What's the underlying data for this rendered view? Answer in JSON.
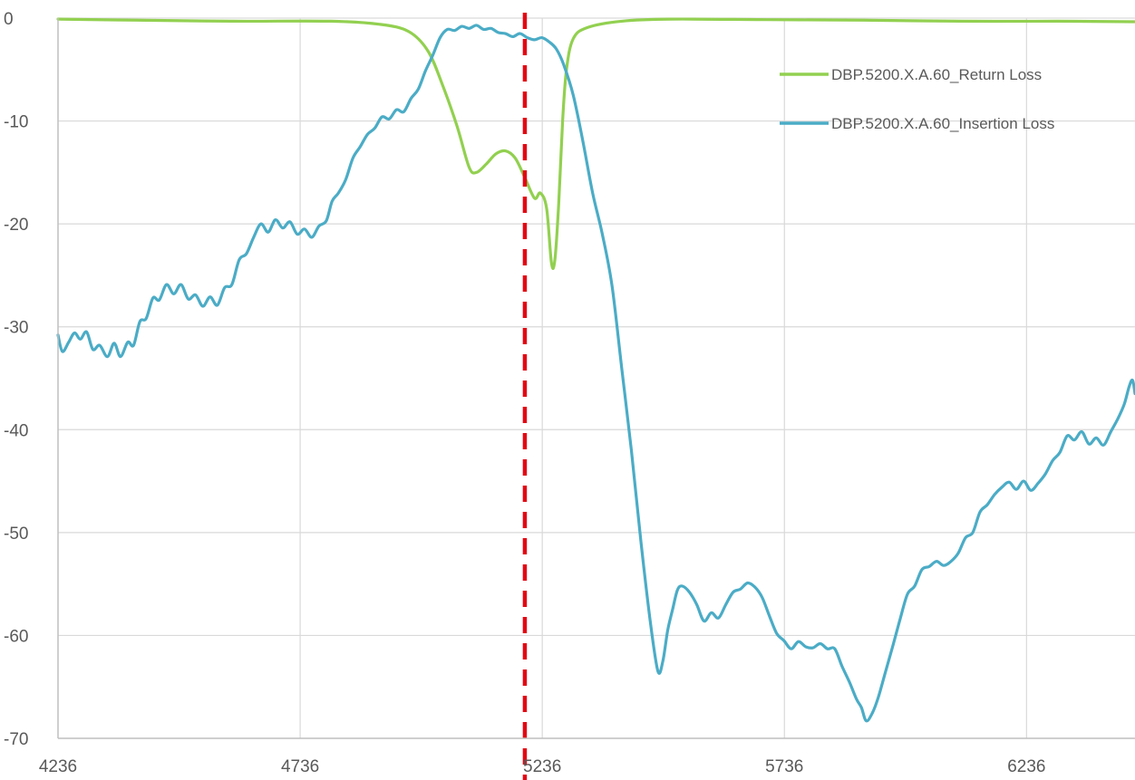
{
  "chart_data": {
    "type": "line",
    "title": "",
    "xlabel": "",
    "ylabel": "",
    "xlim": [
      4236,
      6460
    ],
    "ylim": [
      -70,
      0
    ],
    "x_ticks": [
      4236,
      4736,
      5236,
      5736,
      6236
    ],
    "x_tick_labels": [
      "4236",
      "4736",
      "5236",
      "5736",
      "6236"
    ],
    "y_ticks": [
      0,
      -10,
      -20,
      -30,
      -40,
      -50,
      -60,
      -70
    ],
    "y_tick_labels": [
      "0",
      "-10",
      "-20",
      "-30",
      "-40",
      "-50",
      "-60",
      "-70"
    ],
    "grid": {
      "x": true,
      "y": true
    },
    "legend_position": "top-right",
    "marker_line": {
      "x": 5200,
      "color": "#e30613",
      "style": "dashed"
    },
    "series": [
      {
        "name": "DBP.5200.X.A.60_Return Loss",
        "color": "#92d050",
        "points": [
          [
            4236,
            -0.1
          ],
          [
            4400,
            -0.2
          ],
          [
            4600,
            -0.3
          ],
          [
            4800,
            -0.3
          ],
          [
            4900,
            -0.6
          ],
          [
            4960,
            -1.3
          ],
          [
            5000,
            -3.2
          ],
          [
            5030,
            -6.5
          ],
          [
            5060,
            -10.5
          ],
          [
            5085,
            -14.5
          ],
          [
            5100,
            -15.0
          ],
          [
            5120,
            -14.2
          ],
          [
            5140,
            -13.2
          ],
          [
            5160,
            -12.9
          ],
          [
            5180,
            -13.6
          ],
          [
            5200,
            -15.5
          ],
          [
            5220,
            -17.5
          ],
          [
            5232,
            -17.0
          ],
          [
            5245,
            -18.5
          ],
          [
            5255,
            -23.8
          ],
          [
            5262,
            -23.5
          ],
          [
            5270,
            -18.0
          ],
          [
            5278,
            -10.0
          ],
          [
            5286,
            -5.0
          ],
          [
            5300,
            -2.0
          ],
          [
            5330,
            -0.9
          ],
          [
            5400,
            -0.3
          ],
          [
            5500,
            -0.1
          ],
          [
            5700,
            -0.15
          ],
          [
            5900,
            -0.2
          ],
          [
            6100,
            -0.3
          ],
          [
            6300,
            -0.3
          ],
          [
            6460,
            -0.35
          ]
        ]
      },
      {
        "name": "DBP.5200.X.A.60_Insertion Loss",
        "color": "#4bacc6",
        "points": [
          [
            4236,
            -30.8
          ],
          [
            4245,
            -32.4
          ],
          [
            4258,
            -31.5
          ],
          [
            4270,
            -30.6
          ],
          [
            4282,
            -31.2
          ],
          [
            4295,
            -30.5
          ],
          [
            4308,
            -32.2
          ],
          [
            4322,
            -31.8
          ],
          [
            4338,
            -32.9
          ],
          [
            4352,
            -31.6
          ],
          [
            4365,
            -32.9
          ],
          [
            4380,
            -31.5
          ],
          [
            4392,
            -31.8
          ],
          [
            4405,
            -29.5
          ],
          [
            4418,
            -29.2
          ],
          [
            4432,
            -27.2
          ],
          [
            4445,
            -27.4
          ],
          [
            4460,
            -25.9
          ],
          [
            4475,
            -26.8
          ],
          [
            4490,
            -25.9
          ],
          [
            4505,
            -27.3
          ],
          [
            4520,
            -26.9
          ],
          [
            4535,
            -28.0
          ],
          [
            4550,
            -27.1
          ],
          [
            4565,
            -27.9
          ],
          [
            4580,
            -26.2
          ],
          [
            4595,
            -25.9
          ],
          [
            4610,
            -23.5
          ],
          [
            4625,
            -22.9
          ],
          [
            4640,
            -21.3
          ],
          [
            4655,
            -20.0
          ],
          [
            4670,
            -20.8
          ],
          [
            4685,
            -19.6
          ],
          [
            4700,
            -20.4
          ],
          [
            4715,
            -19.8
          ],
          [
            4730,
            -21.0
          ],
          [
            4745,
            -20.5
          ],
          [
            4760,
            -21.3
          ],
          [
            4775,
            -20.2
          ],
          [
            4790,
            -19.7
          ],
          [
            4802,
            -17.8
          ],
          [
            4815,
            -17.0
          ],
          [
            4830,
            -15.7
          ],
          [
            4845,
            -13.6
          ],
          [
            4860,
            -12.5
          ],
          [
            4875,
            -11.3
          ],
          [
            4890,
            -10.7
          ],
          [
            4905,
            -9.6
          ],
          [
            4920,
            -9.8
          ],
          [
            4935,
            -8.9
          ],
          [
            4950,
            -9.1
          ],
          [
            4965,
            -7.8
          ],
          [
            4980,
            -6.9
          ],
          [
            4995,
            -5.1
          ],
          [
            5010,
            -3.6
          ],
          [
            5025,
            -1.9
          ],
          [
            5040,
            -1.1
          ],
          [
            5055,
            -1.2
          ],
          [
            5070,
            -0.8
          ],
          [
            5085,
            -1.0
          ],
          [
            5100,
            -0.7
          ],
          [
            5115,
            -1.1
          ],
          [
            5130,
            -1.0
          ],
          [
            5145,
            -1.4
          ],
          [
            5160,
            -1.5
          ],
          [
            5175,
            -1.8
          ],
          [
            5190,
            -1.5
          ],
          [
            5205,
            -1.9
          ],
          [
            5220,
            -2.1
          ],
          [
            5235,
            -1.9
          ],
          [
            5250,
            -2.3
          ],
          [
            5265,
            -3.0
          ],
          [
            5280,
            -4.5
          ],
          [
            5300,
            -7.5
          ],
          [
            5320,
            -12.0
          ],
          [
            5340,
            -17.0
          ],
          [
            5360,
            -21.0
          ],
          [
            5380,
            -26.0
          ],
          [
            5400,
            -34.0
          ],
          [
            5420,
            -42.0
          ],
          [
            5440,
            -51.0
          ],
          [
            5460,
            -59.0
          ],
          [
            5475,
            -63.5
          ],
          [
            5485,
            -62.5
          ],
          [
            5495,
            -59.5
          ],
          [
            5505,
            -57.5
          ],
          [
            5515,
            -55.6
          ],
          [
            5525,
            -55.2
          ],
          [
            5540,
            -55.8
          ],
          [
            5555,
            -57.0
          ],
          [
            5570,
            -58.6
          ],
          [
            5585,
            -57.8
          ],
          [
            5600,
            -58.3
          ],
          [
            5615,
            -57.0
          ],
          [
            5630,
            -55.8
          ],
          [
            5645,
            -55.5
          ],
          [
            5660,
            -54.9
          ],
          [
            5675,
            -55.3
          ],
          [
            5690,
            -56.3
          ],
          [
            5705,
            -58.1
          ],
          [
            5720,
            -59.8
          ],
          [
            5735,
            -60.5
          ],
          [
            5750,
            -61.3
          ],
          [
            5765,
            -60.6
          ],
          [
            5780,
            -61.1
          ],
          [
            5795,
            -61.2
          ],
          [
            5810,
            -60.8
          ],
          [
            5825,
            -61.3
          ],
          [
            5840,
            -61.3
          ],
          [
            5855,
            -63.0
          ],
          [
            5870,
            -64.5
          ],
          [
            5885,
            -66.2
          ],
          [
            5895,
            -67.0
          ],
          [
            5905,
            -68.3
          ],
          [
            5918,
            -67.5
          ],
          [
            5930,
            -66.0
          ],
          [
            5945,
            -63.5
          ],
          [
            5960,
            -61.0
          ],
          [
            5975,
            -58.4
          ],
          [
            5990,
            -56.0
          ],
          [
            6005,
            -55.2
          ],
          [
            6020,
            -53.6
          ],
          [
            6035,
            -53.3
          ],
          [
            6050,
            -52.8
          ],
          [
            6065,
            -53.2
          ],
          [
            6080,
            -52.8
          ],
          [
            6095,
            -52.0
          ],
          [
            6110,
            -50.5
          ],
          [
            6125,
            -50.0
          ],
          [
            6140,
            -48.0
          ],
          [
            6155,
            -47.3
          ],
          [
            6170,
            -46.3
          ],
          [
            6185,
            -45.6
          ],
          [
            6200,
            -45.1
          ],
          [
            6215,
            -45.8
          ],
          [
            6230,
            -45.0
          ],
          [
            6245,
            -45.9
          ],
          [
            6260,
            -45.2
          ],
          [
            6275,
            -44.3
          ],
          [
            6290,
            -43.0
          ],
          [
            6305,
            -42.2
          ],
          [
            6320,
            -40.6
          ],
          [
            6335,
            -41.0
          ],
          [
            6350,
            -40.2
          ],
          [
            6365,
            -41.4
          ],
          [
            6380,
            -40.8
          ],
          [
            6395,
            -41.5
          ],
          [
            6410,
            -40.2
          ],
          [
            6425,
            -38.9
          ],
          [
            6438,
            -37.5
          ],
          [
            6448,
            -35.8
          ],
          [
            6455,
            -35.2
          ],
          [
            6460,
            -36.5
          ]
        ]
      }
    ]
  }
}
